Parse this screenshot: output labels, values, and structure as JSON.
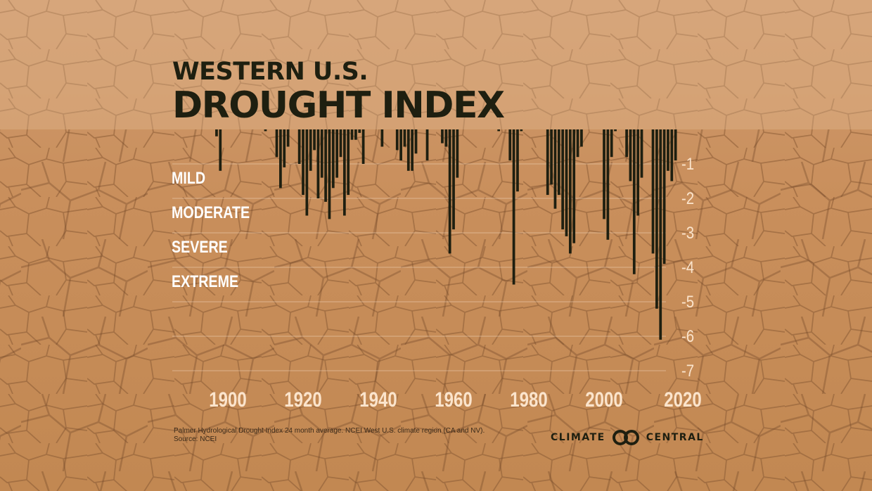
{
  "header": {
    "title_line1": "WESTERN U.S.",
    "title_line2": "DROUGHT INDEX"
  },
  "footnote": {
    "line1": "Palmer Hydrological Drought Index 24 month average. NCEI West U.S. climate region (CA and NV).",
    "line2": "Source: NCEI"
  },
  "logo": {
    "left": "CLIMATE",
    "right": "CENTRAL"
  },
  "colors": {
    "bar": "#1e1f10",
    "category_label": "#ffffff",
    "tick_label": "#fbe4cc",
    "gridline": "#f1d6bb"
  },
  "chart_data": {
    "type": "bar",
    "title": "Western U.S. Drought Index",
    "xlabel": "",
    "ylabel": "Palmer Hydrological Drought Index",
    "xlim": [
      1895,
      2020
    ],
    "ylim": [
      -7,
      0
    ],
    "x_ticks": [
      "1900",
      "1920",
      "1940",
      "1960",
      "1980",
      "2000",
      "2020"
    ],
    "y_ticks": [
      "-1",
      "-2",
      "-3",
      "-4",
      "-5",
      "-6",
      "-7"
    ],
    "category_labels": [
      "MILD",
      "MODERATE",
      "SEVERE",
      "EXTREME"
    ],
    "bar_width_years": 0.7,
    "x": [
      1897,
      1898,
      1910,
      1913,
      1914,
      1915,
      1916,
      1919,
      1920,
      1921,
      1922,
      1923,
      1924,
      1925,
      1926,
      1927,
      1928,
      1929,
      1930,
      1931,
      1932,
      1933,
      1934,
      1935,
      1936,
      1941,
      1945,
      1946,
      1947,
      1948,
      1949,
      1950,
      1953,
      1957,
      1958,
      1959,
      1960,
      1961,
      1972,
      1975,
      1976,
      1977,
      1978,
      1985,
      1986,
      1987,
      1988,
      1989,
      1990,
      1991,
      1992,
      1993,
      1994,
      2000,
      2001,
      2002,
      2003,
      2006,
      2007,
      2008,
      2009,
      2010,
      2013,
      2014,
      2015,
      2016,
      2017,
      2018,
      2019
    ],
    "values": [
      -0.2,
      -1.2,
      -0.05,
      -0.8,
      -1.7,
      -1.1,
      -0.5,
      -1.0,
      -1.9,
      -2.5,
      -1.2,
      -0.6,
      -2.0,
      -1.4,
      -2.1,
      -2.6,
      -1.7,
      -1.4,
      -0.8,
      -2.5,
      -1.9,
      -0.3,
      -0.3,
      -0.1,
      -1.0,
      -0.5,
      -0.6,
      -0.9,
      -0.5,
      -1.2,
      -1.2,
      -0.7,
      -0.9,
      -0.4,
      -0.5,
      -3.6,
      -2.9,
      -1.4,
      -0.05,
      -0.9,
      -4.5,
      -1.8,
      -0.05,
      -1.9,
      -1.6,
      -2.3,
      -1.9,
      -2.9,
      -3.1,
      -3.6,
      -3.3,
      -0.8,
      -0.5,
      -2.6,
      -3.2,
      -0.8,
      -0.05,
      -0.8,
      -1.5,
      -4.2,
      -2.5,
      -1.4,
      -3.6,
      -5.2,
      -6.1,
      -3.9,
      -1.2,
      -1.5,
      -0.9
    ]
  }
}
